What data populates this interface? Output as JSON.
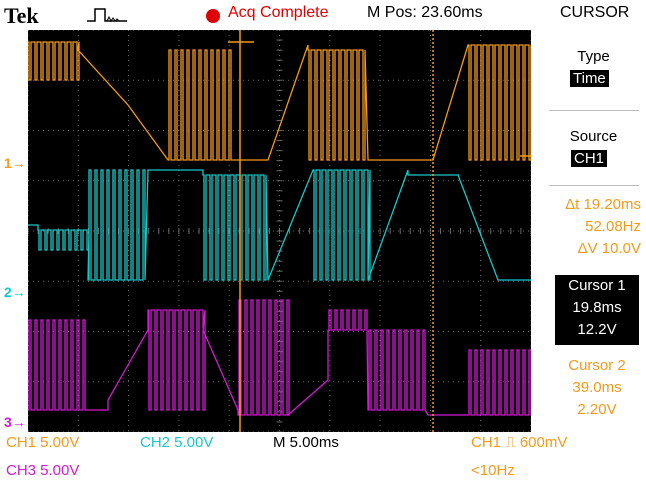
{
  "header": {
    "brand": "Tek",
    "acquisition_status": "Acq Complete",
    "horizontal_position": "M Pos: 23.60ms",
    "menu_title": "CURSOR"
  },
  "channel_markers": [
    {
      "label": "1",
      "color": "#f39a1b"
    },
    {
      "label": "2",
      "color": "#18c8c8"
    },
    {
      "label": "3",
      "color": "#d21ad2"
    }
  ],
  "side_menu": {
    "type_label": "Type",
    "type_value": "Time",
    "source_label": "Source",
    "source_value": "CH1",
    "readouts": {
      "delta_t": "Δt 19.20ms",
      "one_over_delta_t": "52.08Hz",
      "delta_v": "ΔV 10.0V"
    },
    "cursor1": {
      "title": "Cursor 1",
      "time": "19.8ms",
      "value": "12.2V"
    },
    "cursor2": {
      "title": "Cursor 2",
      "time": "39.0ms",
      "value": "2.20V"
    }
  },
  "bottom_bar": {
    "ch1_scale": "CH1  5.00V",
    "ch2_scale": "CH2  5.00V",
    "timebase": "M 5.00ms",
    "trigger": "CH1 ⎍ 600mV",
    "ch3_scale": "CH3  5.00V",
    "trigger_freq": "<10Hz"
  },
  "colors": {
    "ch1": "#f39a1b",
    "ch2": "#18c8c8",
    "ch3": "#d21ad2",
    "acq_status": "#e00000",
    "grid": "#6b6b6b",
    "screen_bg": "#000000"
  }
}
